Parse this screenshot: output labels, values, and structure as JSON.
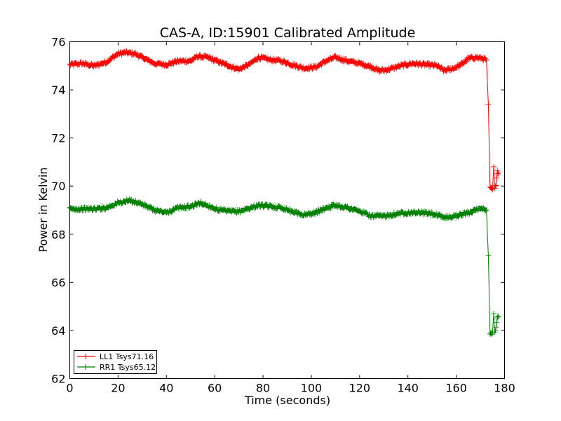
{
  "chart_data": {
    "type": "line",
    "title": "CAS-A, ID:15901 Calibrated Amplitude",
    "xlabel": "Time (seconds)",
    "ylabel": "Power in Kelvin",
    "xlim": [
      0,
      180
    ],
    "ylim": [
      62,
      76
    ],
    "xticks": [
      0,
      20,
      40,
      60,
      80,
      100,
      120,
      140,
      160,
      180
    ],
    "yticks": [
      62,
      64,
      66,
      68,
      70,
      72,
      74,
      76
    ],
    "grid": false,
    "legend_position": "lower-left",
    "marker": "plus",
    "series": [
      {
        "name": "LL1 Tsys71.16",
        "color": "#ff0000",
        "points": [
          [
            0,
            75.05
          ],
          [
            5,
            75.1
          ],
          [
            10,
            75.0
          ],
          [
            15,
            75.15
          ],
          [
            20,
            75.5
          ],
          [
            23,
            75.55
          ],
          [
            27,
            75.5
          ],
          [
            30,
            75.35
          ],
          [
            35,
            75.1
          ],
          [
            40,
            75.05
          ],
          [
            45,
            75.2
          ],
          [
            50,
            75.2
          ],
          [
            53,
            75.4
          ],
          [
            57,
            75.35
          ],
          [
            62,
            75.15
          ],
          [
            66,
            75.0
          ],
          [
            70,
            74.85
          ],
          [
            75,
            75.1
          ],
          [
            78,
            75.35
          ],
          [
            83,
            75.25
          ],
          [
            88,
            75.2
          ],
          [
            92,
            75.05
          ],
          [
            97,
            74.9
          ],
          [
            102,
            74.95
          ],
          [
            106,
            75.2
          ],
          [
            110,
            75.35
          ],
          [
            115,
            75.2
          ],
          [
            120,
            75.1
          ],
          [
            125,
            74.95
          ],
          [
            128,
            74.8
          ],
          [
            132,
            74.85
          ],
          [
            137,
            75.0
          ],
          [
            142,
            75.1
          ],
          [
            147,
            75.05
          ],
          [
            152,
            75.0
          ],
          [
            155,
            74.8
          ],
          [
            159,
            74.9
          ],
          [
            162,
            75.05
          ],
          [
            165,
            75.3
          ],
          [
            168,
            75.35
          ],
          [
            171,
            75.3
          ],
          [
            172.5,
            75.25
          ],
          [
            173.3,
            73.4
          ],
          [
            174,
            69.9
          ],
          [
            175,
            69.85
          ],
          [
            175.5,
            70.8
          ],
          [
            176,
            69.9
          ],
          [
            176.5,
            70.0
          ],
          [
            177,
            70.6
          ],
          [
            177.5,
            70.55
          ]
        ]
      },
      {
        "name": "RR1 Tsys65.12",
        "color": "#008000",
        "points": [
          [
            0,
            69.05
          ],
          [
            5,
            69.05
          ],
          [
            10,
            69.05
          ],
          [
            15,
            69.1
          ],
          [
            20,
            69.3
          ],
          [
            25,
            69.4
          ],
          [
            30,
            69.25
          ],
          [
            35,
            69.0
          ],
          [
            40,
            68.9
          ],
          [
            45,
            69.1
          ],
          [
            50,
            69.15
          ],
          [
            54,
            69.3
          ],
          [
            58,
            69.15
          ],
          [
            62,
            69.0
          ],
          [
            66,
            68.95
          ],
          [
            70,
            68.95
          ],
          [
            75,
            69.1
          ],
          [
            78,
            69.2
          ],
          [
            83,
            69.15
          ],
          [
            88,
            69.1
          ],
          [
            92,
            68.95
          ],
          [
            97,
            68.8
          ],
          [
            102,
            68.9
          ],
          [
            106,
            69.1
          ],
          [
            110,
            69.2
          ],
          [
            115,
            69.1
          ],
          [
            120,
            68.95
          ],
          [
            125,
            68.75
          ],
          [
            130,
            68.75
          ],
          [
            135,
            68.85
          ],
          [
            140,
            68.9
          ],
          [
            145,
            68.9
          ],
          [
            150,
            68.85
          ],
          [
            155,
            68.7
          ],
          [
            160,
            68.75
          ],
          [
            165,
            68.9
          ],
          [
            168,
            69.0
          ],
          [
            171,
            69.05
          ],
          [
            172.5,
            69.0
          ],
          [
            173.3,
            67.1
          ],
          [
            174,
            63.9
          ],
          [
            175,
            63.9
          ],
          [
            175.5,
            64.7
          ],
          [
            176,
            63.95
          ],
          [
            176.5,
            64.1
          ],
          [
            177,
            64.5
          ],
          [
            177.5,
            64.6
          ]
        ]
      }
    ]
  }
}
